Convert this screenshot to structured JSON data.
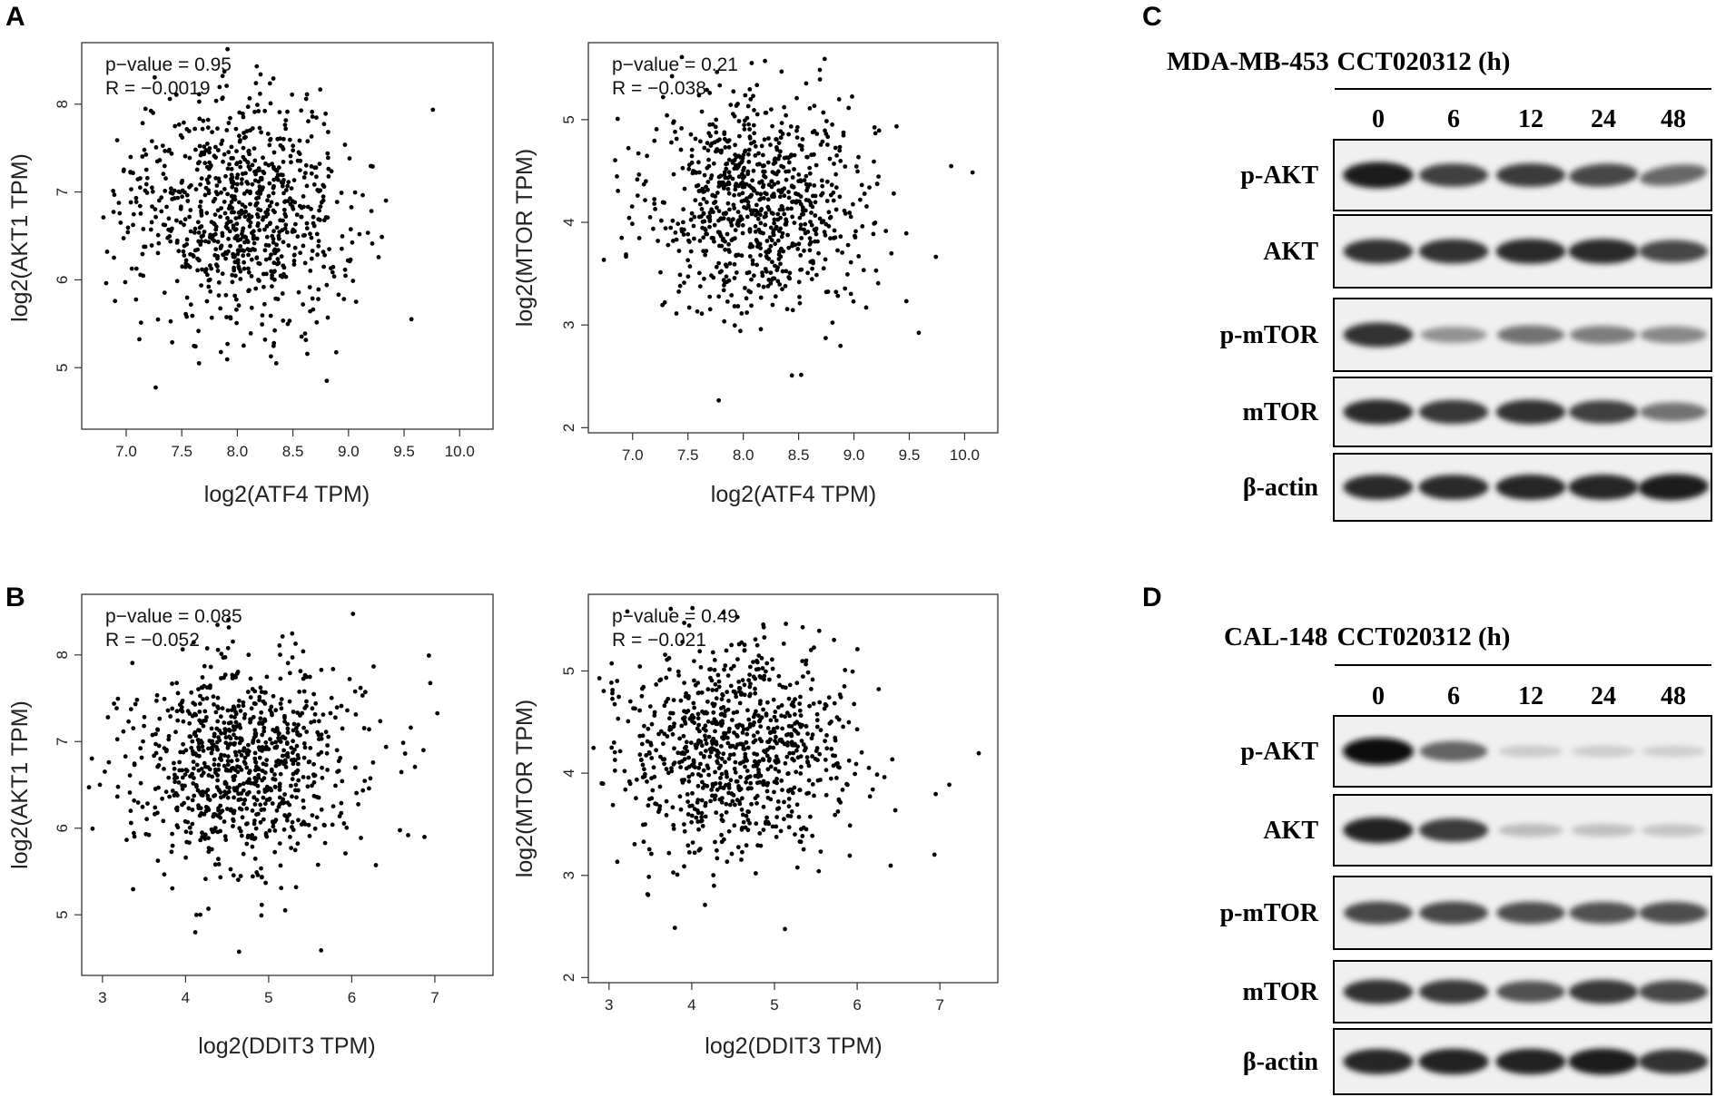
{
  "panel_labels": [
    "A",
    "B",
    "C",
    "D"
  ],
  "chart_data": [
    {
      "id": "A1",
      "panel": "A",
      "type": "scatter",
      "xlabel": "log2(ATF4 TPM)",
      "ylabel": "log2(AKT1 TPM)",
      "xlim": [
        6.6,
        10.3
      ],
      "ylim": [
        4.3,
        8.7
      ],
      "xticks": [
        7.0,
        7.5,
        8.0,
        8.5,
        9.0,
        9.5,
        10.0
      ],
      "xtick_labels": [
        "7.0",
        "7.5",
        "8.0",
        "8.5",
        "9.0",
        "9.5",
        "10.0"
      ],
      "yticks": [
        5,
        6,
        7,
        8
      ],
      "ytick_labels": [
        "5",
        "6",
        "7",
        "8"
      ],
      "annotations": [
        "p−value = 0.95",
        "R = −0.0019"
      ],
      "cluster": {
        "x_center": 8.05,
        "x_sd": 0.48,
        "y_center": 6.75,
        "y_sd": 0.62,
        "n_points": 850,
        "seed": 11
      }
    },
    {
      "id": "A2",
      "panel": "A",
      "type": "scatter",
      "xlabel": "log2(ATF4 TPM)",
      "ylabel": "log2(MTOR TPM)",
      "xlim": [
        6.6,
        10.3
      ],
      "ylim": [
        1.95,
        5.75
      ],
      "xticks": [
        7.0,
        7.5,
        8.0,
        8.5,
        9.0,
        9.5,
        10.0
      ],
      "xtick_labels": [
        "7.0",
        "7.5",
        "8.0",
        "8.5",
        "9.0",
        "9.5",
        "10.0"
      ],
      "yticks": [
        2,
        3,
        4,
        5
      ],
      "ytick_labels": [
        "2",
        "3",
        "4",
        "5"
      ],
      "annotations": [
        "p−value = 0.21",
        "R = −0.038"
      ],
      "cluster": {
        "x_center": 8.1,
        "x_sd": 0.46,
        "y_center": 4.2,
        "y_sd": 0.5,
        "n_points": 850,
        "seed": 23
      }
    },
    {
      "id": "B1",
      "panel": "B",
      "type": "scatter",
      "xlabel": "log2(DDIT3 TPM)",
      "ylabel": "log2(AKT1 TPM)",
      "xlim": [
        2.75,
        7.7
      ],
      "ylim": [
        4.3,
        8.7
      ],
      "xticks": [
        3,
        4,
        5,
        6,
        7
      ],
      "xtick_labels": [
        "3",
        "4",
        "5",
        "6",
        "7"
      ],
      "yticks": [
        5,
        6,
        7,
        8
      ],
      "ytick_labels": [
        "5",
        "6",
        "7",
        "8"
      ],
      "annotations": [
        "p−value = 0.085",
        "R = −0.052"
      ],
      "cluster": {
        "x_center": 4.65,
        "x_sd": 0.68,
        "y_center": 6.75,
        "y_sd": 0.6,
        "n_points": 900,
        "seed": 37
      }
    },
    {
      "id": "B2",
      "panel": "B",
      "type": "scatter",
      "xlabel": "log2(DDIT3 TPM)",
      "ylabel": "log2(MTOR TPM)",
      "xlim": [
        2.75,
        7.7
      ],
      "ylim": [
        1.95,
        5.75
      ],
      "xticks": [
        3,
        4,
        5,
        6,
        7
      ],
      "xtick_labels": [
        "3",
        "4",
        "5",
        "6",
        "7"
      ],
      "yticks": [
        2,
        3,
        4,
        5
      ],
      "ytick_labels": [
        "2",
        "3",
        "4",
        "5"
      ],
      "annotations": [
        "p−value = 0.49",
        "R = −0.021"
      ],
      "cluster": {
        "x_center": 4.55,
        "x_sd": 0.7,
        "y_center": 4.2,
        "y_sd": 0.5,
        "n_points": 900,
        "seed": 53
      }
    }
  ],
  "western_blots": [
    {
      "id": "C",
      "panel": "C",
      "cell_line": "MDA-MB-453",
      "treatment": "CCT020312 (h)",
      "lanes": [
        "0",
        "6",
        "12",
        "24",
        "48"
      ],
      "rows": [
        {
          "protein": "p-AKT",
          "intensity": [
            0.95,
            0.78,
            0.8,
            0.75,
            0.6
          ],
          "tilt": [
            0,
            0,
            0,
            0.3,
            0.7
          ]
        },
        {
          "protein": "AKT",
          "intensity": [
            0.85,
            0.85,
            0.88,
            0.88,
            0.75
          ],
          "tilt": [
            0,
            0,
            0,
            0,
            0
          ]
        },
        {
          "protein": "p-mTOR",
          "intensity": [
            0.85,
            0.4,
            0.55,
            0.5,
            0.45
          ],
          "tilt": [
            0,
            0,
            0,
            0,
            0
          ]
        },
        {
          "protein": "mTOR",
          "intensity": [
            0.88,
            0.82,
            0.85,
            0.78,
            0.55
          ],
          "tilt": [
            0,
            0,
            0,
            0,
            0
          ]
        },
        {
          "protein": "β-actin",
          "intensity": [
            0.88,
            0.88,
            0.9,
            0.9,
            0.95
          ],
          "tilt": [
            0,
            0,
            0,
            0,
            0.2
          ]
        }
      ]
    },
    {
      "id": "D",
      "panel": "D",
      "cell_line": "CAL-148",
      "treatment": "CCT020312 (h)",
      "lanes": [
        "0",
        "6",
        "12",
        "24",
        "48"
      ],
      "rows": [
        {
          "protein": "p-AKT",
          "intensity": [
            1.0,
            0.62,
            0.15,
            0.14,
            0.13
          ],
          "tilt": [
            0,
            0,
            0,
            0,
            0
          ]
        },
        {
          "protein": "AKT",
          "intensity": [
            0.92,
            0.8,
            0.22,
            0.2,
            0.18
          ],
          "tilt": [
            0,
            0,
            0,
            0,
            0
          ]
        },
        {
          "protein": "p-mTOR",
          "intensity": [
            0.75,
            0.75,
            0.72,
            0.7,
            0.72
          ],
          "tilt": [
            0,
            0,
            0,
            0,
            0
          ]
        },
        {
          "protein": "mTOR",
          "intensity": [
            0.85,
            0.82,
            0.7,
            0.82,
            0.75
          ],
          "tilt": [
            0,
            0,
            0,
            0,
            0
          ]
        },
        {
          "protein": "β-actin",
          "intensity": [
            0.9,
            0.92,
            0.92,
            0.95,
            0.85
          ],
          "tilt": [
            0,
            0,
            0,
            0,
            0
          ]
        }
      ]
    }
  ]
}
